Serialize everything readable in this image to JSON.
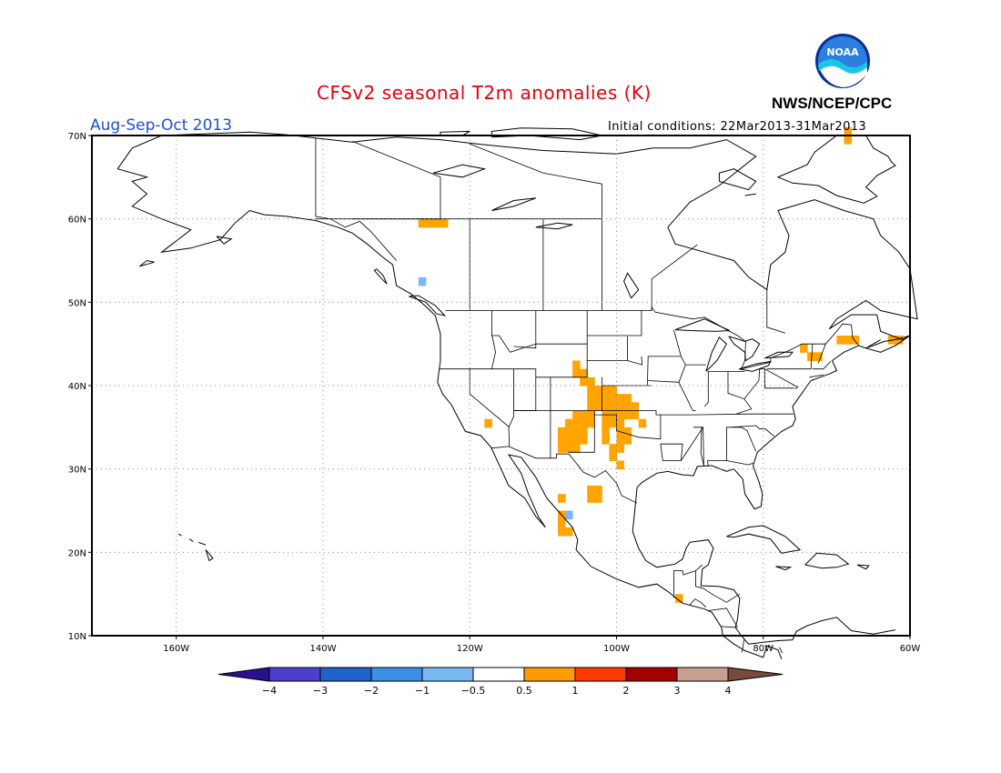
{
  "header": {
    "title": "CFSv2 seasonal T2m anomalies (K)",
    "agency": "NWS/NCEP/CPC",
    "season": "Aug-Sep-Oct 2013",
    "initial_conditions": "Initial conditions: 22Mar2013-31Mar2013",
    "logo_text": "NOAA"
  },
  "axes": {
    "lat_labels": [
      "70N",
      "60N",
      "50N",
      "40N",
      "30N",
      "20N",
      "10N"
    ],
    "lon_labels": [
      "160W",
      "140W",
      "120W",
      "100W",
      "80W",
      "60W"
    ]
  },
  "colorbar": {
    "labels": [
      "-4",
      "-3",
      "-2",
      "-1",
      "-0.5",
      "0.5",
      "1",
      "2",
      "3",
      "4"
    ],
    "colors": [
      "#2a0f8f",
      "#4c3fce",
      "#1f62cc",
      "#3b8fe6",
      "#7ab8f2",
      "#ffffff",
      "#ff9c00",
      "#ff3a00",
      "#a50000",
      "#c9a090",
      "#7a4a3c"
    ]
  },
  "anomalies": {
    "warm_color": "#ffa400",
    "cool_color": "#7ab8f2",
    "warm_cells": [
      [
        59.0,
        -127.0
      ],
      [
        59.0,
        -126.0
      ],
      [
        59.0,
        -125.0
      ],
      [
        59.0,
        -124.0
      ],
      [
        70.0,
        -69.0
      ],
      [
        69.0,
        -69.0
      ],
      [
        35.0,
        -118.0
      ],
      [
        42.0,
        -106.0
      ],
      [
        41.0,
        -106.0
      ],
      [
        41.0,
        -105.0
      ],
      [
        40.0,
        -105.0
      ],
      [
        40.0,
        -104.0
      ],
      [
        39.0,
        -104.0
      ],
      [
        39.0,
        -103.0
      ],
      [
        39.0,
        -102.0
      ],
      [
        39.0,
        -101.0
      ],
      [
        38.0,
        -104.0
      ],
      [
        38.0,
        -103.0
      ],
      [
        38.0,
        -102.0
      ],
      [
        38.0,
        -101.0
      ],
      [
        38.0,
        -100.0
      ],
      [
        38.0,
        -99.0
      ],
      [
        37.0,
        -104.0
      ],
      [
        37.0,
        -103.0
      ],
      [
        37.0,
        -102.0
      ],
      [
        37.0,
        -101.0
      ],
      [
        37.0,
        -100.0
      ],
      [
        37.0,
        -99.0
      ],
      [
        37.0,
        -98.0
      ],
      [
        36.0,
        -106.0
      ],
      [
        36.0,
        -105.0
      ],
      [
        36.0,
        -104.0
      ],
      [
        36.0,
        -102.0
      ],
      [
        36.0,
        -101.0
      ],
      [
        36.0,
        -100.0
      ],
      [
        36.0,
        -99.0
      ],
      [
        36.0,
        -98.0
      ],
      [
        35.0,
        -107.0
      ],
      [
        35.0,
        -106.0
      ],
      [
        35.0,
        -105.0
      ],
      [
        35.0,
        -104.0
      ],
      [
        35.0,
        -102.0
      ],
      [
        35.0,
        -101.0
      ],
      [
        35.0,
        -100.0
      ],
      [
        35.0,
        -97.0
      ],
      [
        34.0,
        -108.0
      ],
      [
        34.0,
        -107.0
      ],
      [
        34.0,
        -106.0
      ],
      [
        34.0,
        -105.0
      ],
      [
        34.0,
        -102.0
      ],
      [
        34.0,
        -100.0
      ],
      [
        34.0,
        -99.0
      ],
      [
        33.0,
        -108.0
      ],
      [
        33.0,
        -107.0
      ],
      [
        33.0,
        -106.0
      ],
      [
        33.0,
        -105.0
      ],
      [
        33.0,
        -102.0
      ],
      [
        33.0,
        -100.0
      ],
      [
        33.0,
        -99.0
      ],
      [
        32.0,
        -108.0
      ],
      [
        32.0,
        -107.0
      ],
      [
        32.0,
        -106.0
      ],
      [
        32.0,
        -101.0
      ],
      [
        32.0,
        -100.0
      ],
      [
        31.0,
        -101.0
      ],
      [
        30.0,
        -100.0
      ],
      [
        27.0,
        -104.0
      ],
      [
        27.0,
        -103.0
      ],
      [
        26.0,
        -104.0
      ],
      [
        26.0,
        -103.0
      ],
      [
        26.0,
        -108.0
      ],
      [
        24.0,
        -108.0
      ],
      [
        23.0,
        -108.0
      ],
      [
        22.0,
        -108.0
      ],
      [
        22.0,
        -107.0
      ],
      [
        14.0,
        -92.0
      ],
      [
        44.0,
        -75.0
      ],
      [
        43.0,
        -74.0
      ],
      [
        43.0,
        -73.0
      ],
      [
        45.0,
        -70.0
      ],
      [
        45.0,
        -69.0
      ],
      [
        45.0,
        -68.0
      ],
      [
        45.0,
        -63.0
      ],
      [
        45.0,
        -62.0
      ]
    ],
    "cool_cells": [
      [
        52.0,
        -127.0
      ],
      [
        24.0,
        -107.0
      ]
    ]
  }
}
